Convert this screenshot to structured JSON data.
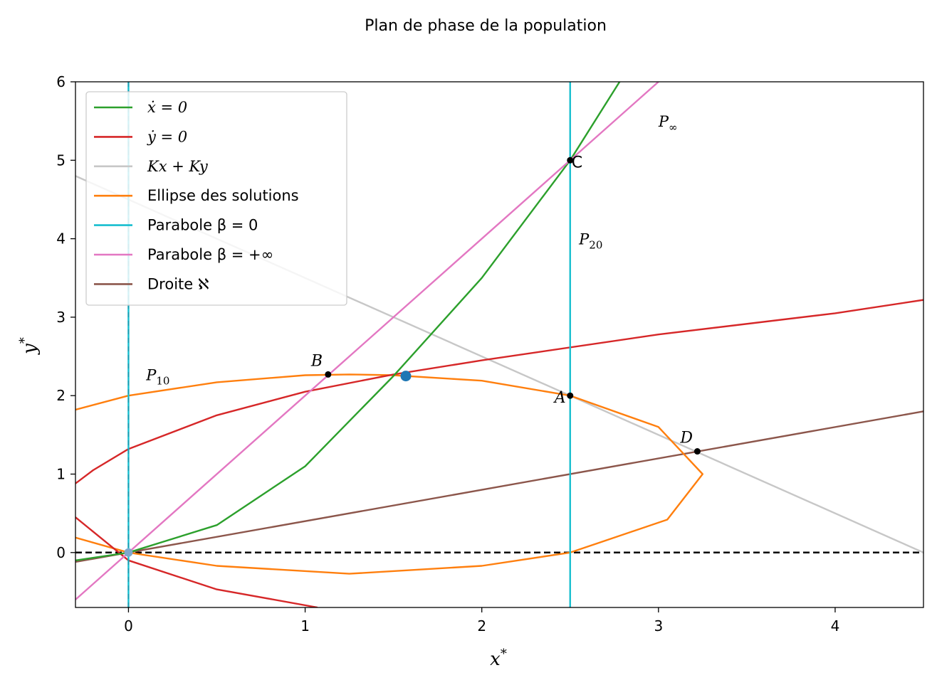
{
  "chart_data": {
    "type": "line",
    "title": "Plan de phase de la population",
    "xlabel": "x*",
    "ylabel": "y*",
    "xlim": [
      -0.3,
      4.5
    ],
    "ylim": [
      -0.7,
      6.0
    ],
    "xticks": [
      0,
      1,
      2,
      3,
      4
    ],
    "yticks": [
      0,
      1,
      2,
      3,
      4,
      5,
      6
    ],
    "grid": false,
    "legend_position": "top-left",
    "series": [
      {
        "name": "ẋ = 0",
        "color": "#2ca02c",
        "x": [
          -0.3,
          0,
          0.5,
          1,
          1.5,
          2,
          2.5,
          2.78
        ],
        "y": [
          -0.1,
          0,
          0.35,
          1.1,
          2.25,
          3.5,
          5.0,
          6.0
        ]
      },
      {
        "name": "ẏ = 0",
        "color": "#d62728",
        "branches": [
          {
            "x": [
              1.07,
              0.5,
              0,
              -0.3
            ],
            "y": [
              -0.7,
              -0.47,
              -0.1,
              0.45
            ]
          },
          {
            "x": [
              -0.3,
              -0.2,
              0,
              0.5,
              1,
              1.5,
              2,
              3,
              4,
              4.5
            ],
            "y": [
              0.88,
              1.05,
              1.32,
              1.75,
              2.05,
              2.27,
              2.45,
              2.78,
              3.05,
              3.22
            ]
          }
        ]
      },
      {
        "name": "Kx + Ky",
        "color": "#c7c7c7",
        "x": [
          -0.3,
          4.5
        ],
        "y": [
          4.8,
          0.0
        ]
      },
      {
        "name": "Ellipse des solutions",
        "color": "#ff7f0e",
        "x": [
          -0.3,
          0,
          0.5,
          1,
          1.25,
          1.5,
          2,
          2.5,
          3,
          3.25,
          3.05,
          2.5,
          2,
          1.25,
          0.5,
          0,
          -0.3
        ],
        "y": [
          1.82,
          2.0,
          2.17,
          2.26,
          2.27,
          2.26,
          2.19,
          2.0,
          1.6,
          1.0,
          0.42,
          0.0,
          -0.17,
          -0.27,
          -0.17,
          0.0,
          0.19
        ]
      },
      {
        "name": "Parabole β = 0",
        "color": "#17becf",
        "lines": [
          {
            "x": 0,
            "y": [
              -0.7,
              6.0
            ]
          },
          {
            "x": 2.5,
            "y": [
              -0.7,
              6.0
            ]
          }
        ]
      },
      {
        "name": "Parabole β = +∞",
        "color": "#e377c2",
        "x": [
          -0.3,
          3.0
        ],
        "y": [
          -0.6,
          6.0
        ]
      },
      {
        "name": "Droite ℵ",
        "color": "#8c564b",
        "x": [
          -0.3,
          4.5
        ],
        "y": [
          -0.12,
          1.8
        ]
      }
    ],
    "reference_lines": [
      {
        "axis": "y",
        "value": 0,
        "style": "dashed",
        "color": "#000000"
      }
    ],
    "points": [
      {
        "label": "A",
        "x": 2.5,
        "y": 2.0
      },
      {
        "label": "B",
        "x": 1.13,
        "y": 2.27
      },
      {
        "label": "C",
        "x": 2.5,
        "y": 5.0
      },
      {
        "label": "D",
        "x": 3.22,
        "y": 1.29
      }
    ],
    "equilibrium": {
      "x": 1.57,
      "y": 2.25,
      "color": "#1f77b4"
    },
    "annotations": [
      {
        "text": "P∞",
        "base": "P",
        "sub": "∞",
        "x": 3.0,
        "y": 5.5
      },
      {
        "text": "P20",
        "base": "P",
        "sub": "20",
        "x": 2.55,
        "y": 4.0
      },
      {
        "text": "P10",
        "base": "P",
        "sub": "10",
        "x": 0.1,
        "y": 2.27
      }
    ]
  },
  "legend": {
    "items": [
      {
        "label": "ẋ = 0",
        "color": "#2ca02c"
      },
      {
        "label": "ẏ = 0",
        "color": "#d62728"
      },
      {
        "label": "Kx + Ky",
        "color": "#c7c7c7"
      },
      {
        "label": "Ellipse des solutions",
        "color": "#ff7f0e"
      },
      {
        "label": "Parabole β = 0",
        "color": "#17becf"
      },
      {
        "label": "Parabole β = +∞",
        "color": "#e377c2"
      },
      {
        "label": "Droite ℵ",
        "color": "#8c564b"
      }
    ]
  }
}
